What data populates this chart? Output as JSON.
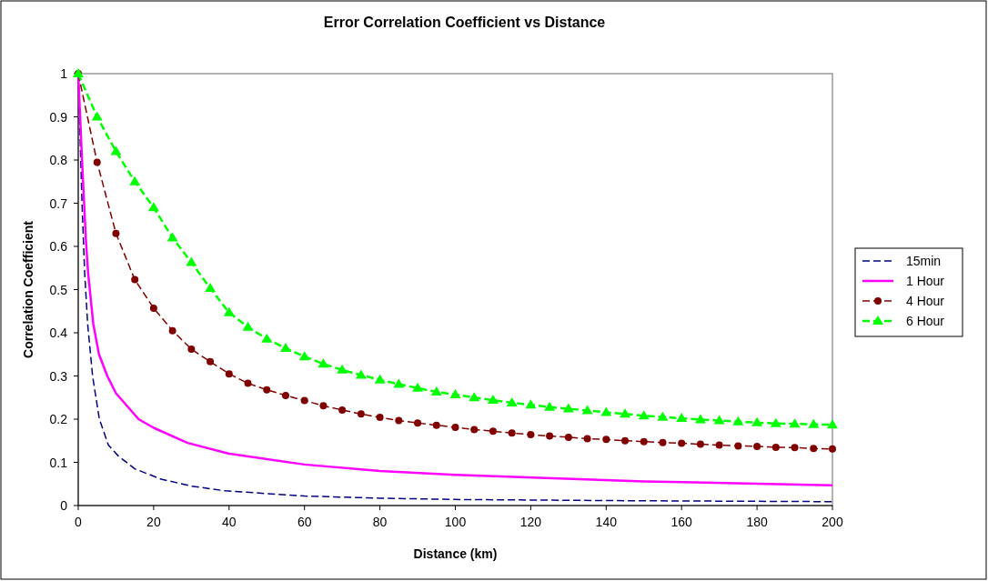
{
  "chart_data": {
    "type": "line",
    "title": "Error Correlation Coefficient vs Distance",
    "xlabel": "Distance (km)",
    "ylabel": "Correlation Coefficient",
    "xlim": [
      0,
      200
    ],
    "xticks": [
      0,
      20,
      40,
      60,
      80,
      100,
      120,
      140,
      160,
      180,
      200
    ],
    "ylim": [
      0,
      1
    ],
    "yticks": [
      0,
      0.1,
      0.2,
      0.3,
      0.4,
      0.5,
      0.6,
      0.7,
      0.8,
      0.9,
      1
    ],
    "grid": false,
    "legend": "right",
    "series": [
      {
        "name": "15min",
        "color": "#000080",
        "line_style": "dashed",
        "marker": "none",
        "x": [
          0,
          0.5,
          1,
          1.7,
          2.5,
          3.8,
          5.6,
          8,
          10.6,
          15,
          22,
          30,
          39,
          60,
          80,
          100,
          150,
          200
        ],
        "values": [
          1,
          0.85,
          0.7,
          0.54,
          0.42,
          0.3,
          0.2,
          0.14,
          0.115,
          0.085,
          0.061,
          0.045,
          0.034,
          0.022,
          0.017,
          0.014,
          0.011,
          0.009
        ]
      },
      {
        "name": "1 Hour",
        "color": "#ff00ff",
        "line_style": "solid",
        "marker": "none",
        "x": [
          0,
          1,
          2,
          2.6,
          4,
          5.5,
          7.7,
          10,
          16,
          20,
          29,
          40,
          60,
          80,
          100,
          150,
          200
        ],
        "values": [
          1,
          0.8,
          0.62,
          0.54,
          0.42,
          0.35,
          0.3,
          0.26,
          0.2,
          0.18,
          0.145,
          0.12,
          0.095,
          0.08,
          0.071,
          0.056,
          0.047
        ]
      },
      {
        "name": "4 Hour",
        "color": "#800000",
        "line_style": "dashed",
        "marker": "circle",
        "x": [
          0,
          5,
          10,
          15,
          20,
          25,
          30,
          35,
          40,
          45,
          50,
          55,
          60,
          65,
          70,
          75,
          80,
          85,
          90,
          95,
          100,
          105,
          110,
          115,
          120,
          125,
          130,
          135,
          140,
          145,
          150,
          155,
          160,
          165,
          170,
          175,
          180,
          185,
          190,
          195,
          200
        ],
        "values": [
          1,
          0.795,
          0.63,
          0.523,
          0.457,
          0.405,
          0.362,
          0.333,
          0.305,
          0.283,
          0.268,
          0.255,
          0.243,
          0.231,
          0.221,
          0.212,
          0.204,
          0.197,
          0.191,
          0.186,
          0.181,
          0.176,
          0.172,
          0.168,
          0.164,
          0.161,
          0.158,
          0.155,
          0.153,
          0.15,
          0.148,
          0.146,
          0.144,
          0.142,
          0.14,
          0.138,
          0.137,
          0.135,
          0.134,
          0.132,
          0.131
        ]
      },
      {
        "name": "6 Hour",
        "color": "#00ff00",
        "line_style": "dashed",
        "marker": "triangle",
        "x": [
          0,
          5,
          10,
          15,
          20,
          25,
          30,
          35,
          40,
          45,
          50,
          55,
          60,
          65,
          70,
          75,
          80,
          85,
          90,
          95,
          100,
          105,
          110,
          115,
          120,
          125,
          130,
          135,
          140,
          145,
          150,
          155,
          160,
          165,
          170,
          175,
          180,
          185,
          190,
          195,
          200
        ],
        "values": [
          1,
          0.9,
          0.82,
          0.75,
          0.69,
          0.62,
          0.563,
          0.503,
          0.447,
          0.413,
          0.386,
          0.364,
          0.345,
          0.328,
          0.314,
          0.302,
          0.291,
          0.281,
          0.272,
          0.263,
          0.257,
          0.25,
          0.244,
          0.238,
          0.233,
          0.228,
          0.224,
          0.22,
          0.216,
          0.212,
          0.208,
          0.205,
          0.202,
          0.199,
          0.197,
          0.194,
          0.192,
          0.19,
          0.189,
          0.188,
          0.187
        ]
      }
    ]
  }
}
